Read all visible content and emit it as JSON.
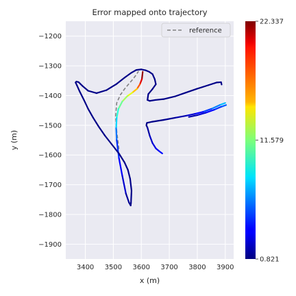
{
  "chart_data": {
    "type": "line",
    "title": "Error mapped onto trajectory",
    "xlabel": "x (m)",
    "ylabel": "y (m)",
    "xlim": [
      3330,
      3930
    ],
    "ylim": [
      -1950,
      -1150
    ],
    "xticks": [
      3400,
      3500,
      3600,
      3700,
      3800,
      3900
    ],
    "yticks": [
      -1200,
      -1300,
      -1400,
      -1500,
      -1600,
      -1700,
      -1800,
      -1900
    ],
    "grid": true,
    "legend": {
      "position": "top-right",
      "entries": [
        "reference"
      ]
    },
    "colorbar": {
      "min": 0.821,
      "max": 22.337,
      "tick_values": [
        22.337,
        11.579,
        0.821
      ],
      "tick_labels": [
        "22.337",
        "11.579",
        "0.821"
      ],
      "colormap": "jet"
    },
    "reference": {
      "name": "reference",
      "color": "#808080",
      "style": "dashed",
      "x": [
        3520,
        3512,
        3508,
        3512,
        3525,
        3540,
        3556,
        3570,
        3582,
        3590
      ],
      "y": [
        -1580,
        -1520,
        -1470,
        -1425,
        -1398,
        -1378,
        -1360,
        -1345,
        -1330,
        -1318
      ]
    },
    "trajectory": {
      "error_unit_range": [
        0.821,
        22.337
      ],
      "segments": [
        {
          "x": [
            3605,
            3602,
            3595,
            3585,
            3568,
            3550,
            3532,
            3518,
            3512,
            3510,
            3512
          ],
          "y": [
            -1320,
            -1345,
            -1362,
            -1377,
            -1390,
            -1402,
            -1420,
            -1445,
            -1475,
            -1510,
            -1550
          ],
          "error": [
            22.337,
            21.5,
            19,
            16.5,
            14.5,
            13,
            11.8,
            10.5,
            9,
            7,
            5
          ]
        },
        {
          "x": [
            3512,
            3520,
            3532,
            3545
          ],
          "y": [
            -1550,
            -1610,
            -1670,
            -1730
          ],
          "error": [
            5,
            4,
            3,
            2
          ]
        },
        {
          "x": [
            3545,
            3556,
            3562,
            3563,
            3565,
            3560,
            3552,
            3540,
            3520,
            3495,
            3470,
            3448,
            3428,
            3410,
            3395,
            3380,
            3370,
            3365,
            3368,
            3376,
            3390,
            3410,
            3440,
            3475,
            3510,
            3540,
            3565,
            3582,
            3600,
            3615,
            3628,
            3640,
            3648,
            3652,
            3640,
            3625,
            3622,
            3630,
            3650,
            3680,
            3720,
            3760,
            3800,
            3840,
            3870,
            3885,
            3887
          ],
          "y": [
            -1730,
            -1760,
            -1770,
            -1762,
            -1720,
            -1680,
            -1650,
            -1625,
            -1595,
            -1565,
            -1535,
            -1505,
            -1475,
            -1445,
            -1415,
            -1387,
            -1366,
            -1356,
            -1353,
            -1355,
            -1368,
            -1384,
            -1392,
            -1382,
            -1362,
            -1340,
            -1323,
            -1314,
            -1312,
            -1315,
            -1320,
            -1328,
            -1345,
            -1362,
            -1378,
            -1395,
            -1415,
            -1418,
            -1415,
            -1412,
            -1403,
            -1390,
            -1377,
            -1365,
            -1356,
            -1355,
            -1363
          ],
          "error": [
            1.5,
            1.2,
            1,
            1,
            1,
            1,
            1,
            1,
            1,
            1,
            1,
            1,
            1,
            1,
            1,
            1,
            1,
            1,
            1,
            1,
            1,
            1,
            1,
            1,
            1,
            1,
            1,
            1,
            1,
            1,
            1,
            1,
            1,
            1,
            1,
            1,
            1,
            1,
            1,
            1,
            1,
            1,
            1,
            1,
            1,
            1,
            1
          ]
        },
        {
          "x": [
            3900,
            3880,
            3850,
            3820,
            3790,
            3760,
            3720,
            3680,
            3640,
            3620,
            3618,
            3622
          ],
          "y": [
            -1425,
            -1432,
            -1445,
            -1455,
            -1462,
            -1468,
            -1475,
            -1482,
            -1488,
            -1492,
            -1500,
            -1508
          ],
          "error": [
            8,
            7,
            5.5,
            4,
            3,
            2,
            1.5,
            1,
            1,
            1,
            1,
            1
          ]
        },
        {
          "x": [
            3903,
            3885,
            3860,
            3830,
            3800,
            3770
          ],
          "y": [
            -1432,
            -1438,
            -1448,
            -1458,
            -1466,
            -1472
          ],
          "error": [
            6,
            5,
            4,
            3,
            2,
            1.5
          ]
        },
        {
          "x": [
            3622,
            3630,
            3640,
            3652,
            3665,
            3675
          ],
          "y": [
            -1508,
            -1535,
            -1560,
            -1578,
            -1588,
            -1595
          ],
          "error": [
            1,
            2,
            2.5,
            3,
            3.5,
            4
          ]
        }
      ]
    }
  }
}
